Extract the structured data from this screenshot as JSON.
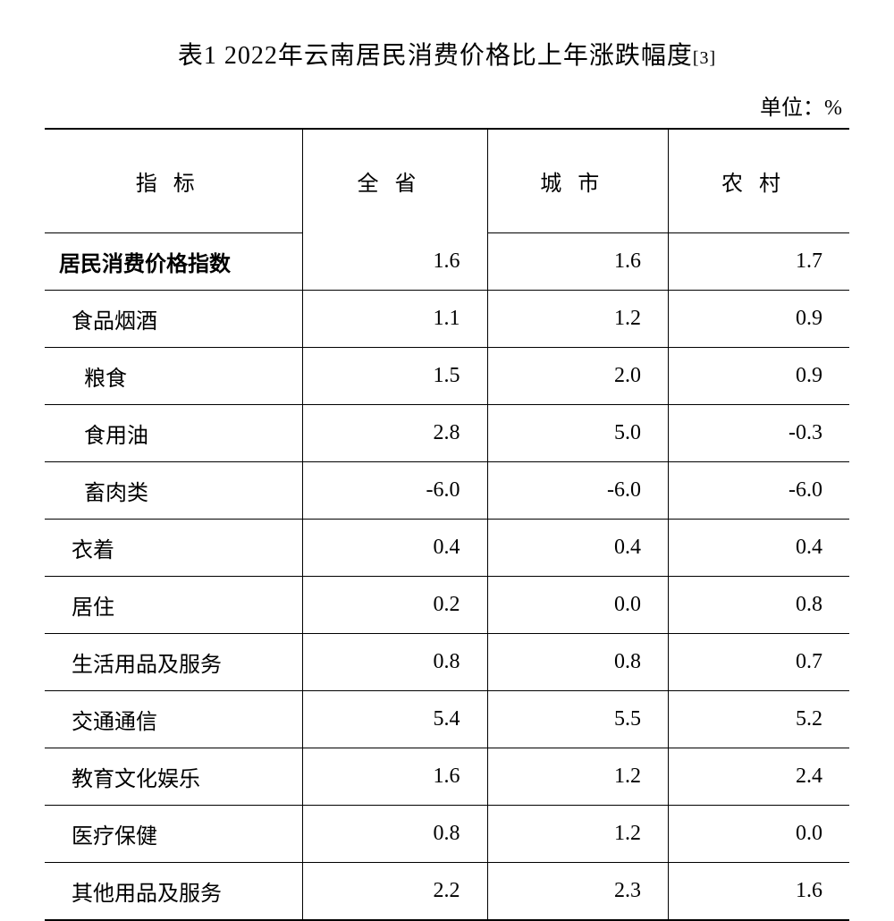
{
  "table": {
    "title_prefix": "表1 2022年云南居民消费价格比上年涨跌幅度",
    "footnote_ref": "[3]",
    "unit_label": "单位：%",
    "columns": {
      "indicator": "指标",
      "province": "全省",
      "city": "城市",
      "rural": "农村"
    },
    "column_widths": {
      "indicator": "32%",
      "province": "23%",
      "city": "22.5%",
      "rural": "22.5%"
    },
    "font_size_body": 24,
    "font_size_title": 28,
    "border_thick": 2.5,
    "border_thin": 1,
    "text_color": "#000000",
    "background_color": "#ffffff",
    "rows": [
      {
        "label": "居民消费价格指数",
        "bold": true,
        "indent": 0,
        "province": "1.6",
        "city": "1.6",
        "rural": "1.7"
      },
      {
        "label": "食品烟酒",
        "bold": false,
        "indent": 0,
        "province": "1.1",
        "city": "1.2",
        "rural": "0.9"
      },
      {
        "label": "粮食",
        "bold": false,
        "indent": 1,
        "province": "1.5",
        "city": "2.0",
        "rural": "0.9"
      },
      {
        "label": "食用油",
        "bold": false,
        "indent": 1,
        "province": "2.8",
        "city": "5.0",
        "rural": "-0.3"
      },
      {
        "label": "畜肉类",
        "bold": false,
        "indent": 1,
        "province": "-6.0",
        "city": "-6.0",
        "rural": "-6.0"
      },
      {
        "label": "衣着",
        "bold": false,
        "indent": 0,
        "province": "0.4",
        "city": "0.4",
        "rural": "0.4"
      },
      {
        "label": "居住",
        "bold": false,
        "indent": 0,
        "province": "0.2",
        "city": "0.0",
        "rural": "0.8"
      },
      {
        "label": "生活用品及服务",
        "bold": false,
        "indent": 0,
        "province": "0.8",
        "city": "0.8",
        "rural": "0.7"
      },
      {
        "label": "交通通信",
        "bold": false,
        "indent": 0,
        "province": "5.4",
        "city": "5.5",
        "rural": "5.2"
      },
      {
        "label": "教育文化娱乐",
        "bold": false,
        "indent": 0,
        "province": "1.6",
        "city": "1.2",
        "rural": "2.4"
      },
      {
        "label": "医疗保健",
        "bold": false,
        "indent": 0,
        "province": "0.8",
        "city": "1.2",
        "rural": "0.0"
      },
      {
        "label": "其他用品及服务",
        "bold": false,
        "indent": 0,
        "province": "2.2",
        "city": "2.3",
        "rural": "1.6"
      }
    ]
  }
}
